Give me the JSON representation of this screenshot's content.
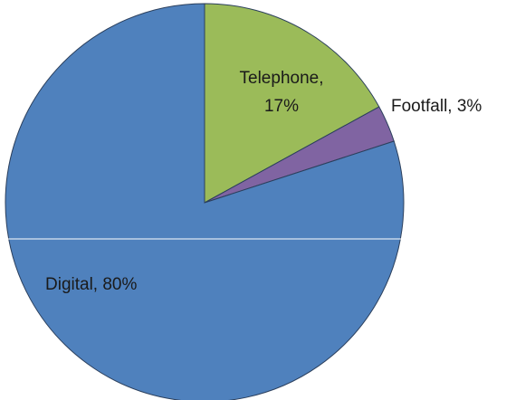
{
  "chart_data": {
    "type": "pie",
    "slices": [
      {
        "label": "Telephone",
        "value": 17,
        "value_text": "17%",
        "color": "#9bbb59"
      },
      {
        "label": "Footfall",
        "value": 3,
        "value_text": "3%",
        "color": "#8064a2"
      },
      {
        "label": "Digital",
        "value": 80,
        "value_text": "80%",
        "color": "#4f81bd"
      }
    ],
    "start_angle": "12 o'clock",
    "direction": "clockwise",
    "labels": {
      "telephone_line1": "Telephone,",
      "telephone_line2": "17%",
      "footfall": "Footfall, 3%",
      "digital": "Digital, 80%"
    },
    "legend": "none"
  }
}
